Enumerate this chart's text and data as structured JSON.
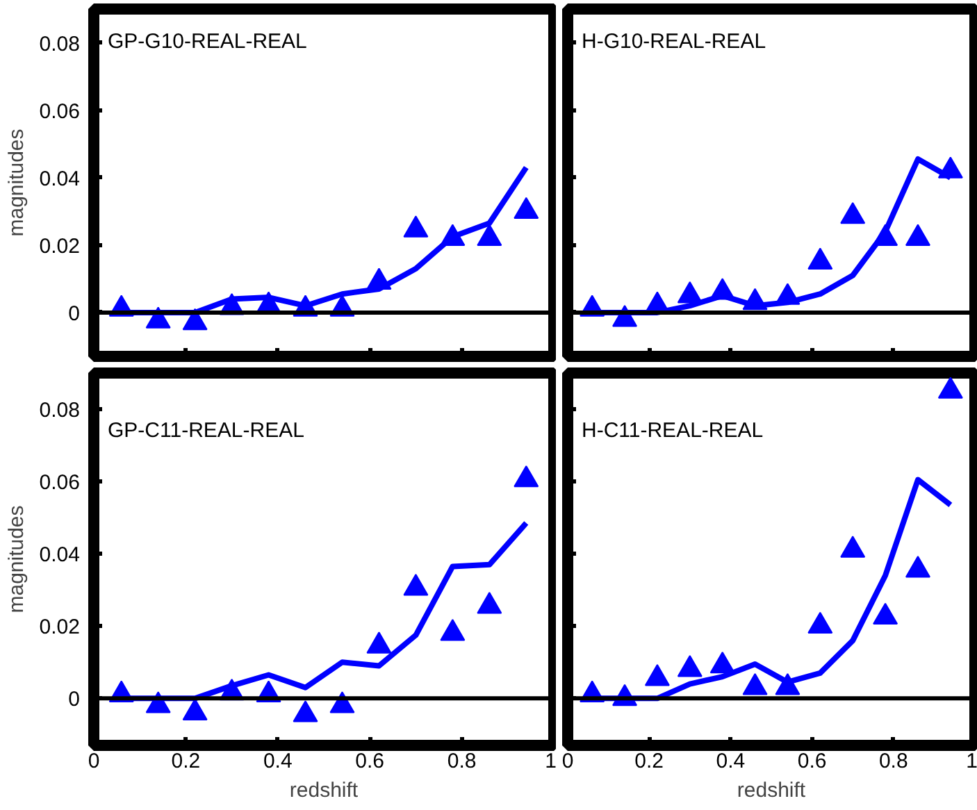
{
  "chart_data": [
    {
      "type": "scatter",
      "title": "GP-G10-REAL-REAL",
      "ylabel": "magnitudes",
      "x": [
        0.06,
        0.14,
        0.22,
        0.3,
        0.38,
        0.46,
        0.54,
        0.62,
        0.7,
        0.78,
        0.86,
        0.94
      ],
      "xlim": [
        0,
        1
      ],
      "xticks": [
        0,
        0.2,
        0.4,
        0.6,
        0.8,
        1
      ],
      "ylim": [
        -0.013,
        0.09
      ],
      "yticks": [
        0,
        0.02,
        0.04,
        0.06,
        0.08
      ],
      "tick_labels": "y",
      "grid": false,
      "line_style": "solid",
      "ref_lines": [
        {
          "axis": "y",
          "value": 0,
          "label": null,
          "color": "#000000"
        }
      ],
      "series": [
        {
          "marker": "triangle",
          "color": "#0000ff",
          "values": [
            0.001,
            -0.0025,
            -0.003,
            0.0015,
            0.002,
            0.001,
            0.001,
            0.009,
            0.0245,
            0.022,
            0.022,
            0.03
          ]
        },
        {
          "type": "line",
          "color": "#0000ff",
          "values": [
            0,
            0,
            0,
            0.004,
            0.0045,
            0.002,
            0.0055,
            0.007,
            0.013,
            0.0225,
            0.0265,
            0.043
          ]
        }
      ]
    },
    {
      "type": "scatter",
      "title": "H-G10-REAL-REAL",
      "x": [
        0.06,
        0.14,
        0.22,
        0.3,
        0.38,
        0.46,
        0.54,
        0.62,
        0.7,
        0.78,
        0.86,
        0.94
      ],
      "xlim": [
        0,
        1
      ],
      "xticks": [
        0,
        0.2,
        0.4,
        0.6,
        0.8,
        1
      ],
      "ylim": [
        -0.013,
        0.09
      ],
      "yticks": [
        0,
        0.02,
        0.04,
        0.06,
        0.08
      ],
      "tick_labels": false,
      "grid": false,
      "line_style": "solid",
      "ref_lines": [
        {
          "axis": "y",
          "value": 0,
          "label": null,
          "color": "#000000"
        }
      ],
      "series": [
        {
          "marker": "triangle",
          "color": "#0000ff",
          "values": [
            0.001,
            -0.002,
            0.002,
            0.005,
            0.006,
            0.003,
            0.0045,
            0.015,
            0.0285,
            0.022,
            0.022,
            0.042
          ]
        },
        {
          "type": "line",
          "color": "#0000ff",
          "values": [
            0,
            0,
            0,
            0.002,
            0.005,
            0.002,
            0.003,
            0.0055,
            0.011,
            0.024,
            0.0455,
            0.04
          ]
        }
      ]
    },
    {
      "type": "scatter",
      "title": "GP-C11-REAL-REAL",
      "xlabel": "redshift",
      "ylabel": "magnitudes",
      "x": [
        0.06,
        0.14,
        0.22,
        0.3,
        0.38,
        0.46,
        0.54,
        0.62,
        0.7,
        0.78,
        0.86,
        0.94
      ],
      "xlim": [
        0,
        1
      ],
      "xticks": [
        0,
        0.2,
        0.4,
        0.6,
        0.8,
        1
      ],
      "ylim": [
        -0.013,
        0.09
      ],
      "yticks": [
        0,
        0.02,
        0.04,
        0.06,
        0.08
      ],
      "grid": false,
      "line_style": "solid",
      "ref_lines": [
        {
          "axis": "y",
          "value": 0,
          "label": null,
          "color": "#000000"
        }
      ],
      "series": [
        {
          "marker": "triangle",
          "color": "#0000ff",
          "values": [
            0.001,
            -0.002,
            -0.004,
            0.0015,
            0.001,
            -0.0045,
            -0.002,
            0.0145,
            0.0305,
            0.018,
            0.0255,
            0.0605
          ]
        },
        {
          "type": "line",
          "color": "#0000ff",
          "values": [
            0,
            0,
            0,
            0.0035,
            0.0065,
            0.003,
            0.01,
            0.009,
            0.0175,
            0.0365,
            0.037,
            0.0485
          ]
        }
      ]
    },
    {
      "type": "scatter",
      "title": "H-C11-REAL-REAL",
      "xlabel": "redshift",
      "x": [
        0.06,
        0.14,
        0.22,
        0.3,
        0.38,
        0.46,
        0.54,
        0.62,
        0.7,
        0.78,
        0.86,
        0.94
      ],
      "xlim": [
        0,
        1
      ],
      "xticks": [
        0,
        0.2,
        0.4,
        0.6,
        0.8,
        1
      ],
      "ylim": [
        -0.013,
        0.09
      ],
      "yticks": [
        0,
        0.02,
        0.04,
        0.06,
        0.08
      ],
      "tick_labels": "x",
      "grid": false,
      "line_style": "solid",
      "ref_lines": [
        {
          "axis": "y",
          "value": 0,
          "label": null,
          "color": "#000000"
        }
      ],
      "series": [
        {
          "marker": "triangle",
          "color": "#0000ff",
          "values": [
            0.001,
            0,
            0.0055,
            0.008,
            0.009,
            0.003,
            0.003,
            0.02,
            0.041,
            0.0225,
            0.0355,
            0.085
          ]
        },
        {
          "type": "line",
          "color": "#0000ff",
          "values": [
            0,
            0,
            0,
            0.004,
            0.006,
            0.0095,
            0.0045,
            0.007,
            0.016,
            0.034,
            0.0605,
            0.0535
          ]
        }
      ]
    }
  ]
}
